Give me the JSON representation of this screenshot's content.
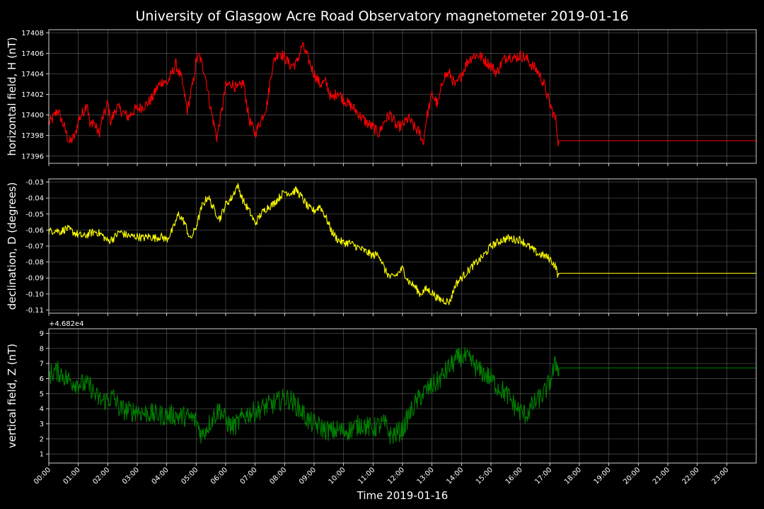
{
  "chart_data": {
    "type": "line",
    "title": "University of Glasgow Acre Road Observatory magnetometer 2019-01-16",
    "xlabel": "Time 2019-01-16",
    "x_ticks": [
      "00:00",
      "01:00",
      "02:00",
      "03:00",
      "04:00",
      "05:00",
      "06:00",
      "07:00",
      "08:00",
      "09:00",
      "10:00",
      "11:00",
      "12:00",
      "13:00",
      "14:00",
      "15:00",
      "16:00",
      "17:00",
      "18:00",
      "19:00",
      "20:00",
      "21:00",
      "22:00",
      "23:00"
    ],
    "xlim": [
      0,
      24
    ],
    "grid": true,
    "panels": [
      {
        "name": "H",
        "ylabel": "horizontal field, H (nT)",
        "color": "#ff0000",
        "ylim": [
          17395.3,
          17408.3
        ],
        "yticks": [
          17396,
          17398,
          17400,
          17402,
          17404,
          17406,
          17408
        ],
        "offset_text": "",
        "noise": 0.55,
        "data_end_hour": 17.3,
        "flat_value": 17397.5,
        "x": [
          0,
          0.1,
          0.3,
          0.5,
          0.7,
          0.9,
          1.0,
          1.2,
          1.3,
          1.4,
          1.5,
          1.6,
          1.7,
          1.8,
          1.9,
          2.0,
          2.1,
          2.3,
          2.5,
          2.7,
          2.9,
          3.1,
          3.3,
          3.5,
          3.7,
          3.9,
          4.0,
          4.2,
          4.3,
          4.5,
          4.7,
          4.9,
          5.0,
          5.1,
          5.3,
          5.5,
          5.7,
          5.9,
          6.0,
          6.2,
          6.4,
          6.6,
          6.8,
          7.0,
          7.2,
          7.4,
          7.6,
          7.8,
          8.0,
          8.2,
          8.4,
          8.6,
          8.8,
          9.0,
          9.2,
          9.4,
          9.6,
          9.8,
          10.0,
          10.2,
          10.4,
          10.6,
          10.8,
          11.0,
          11.2,
          11.4,
          11.6,
          11.8,
          12.0,
          12.2,
          12.4,
          12.6,
          12.7,
          12.8,
          13.0,
          13.2,
          13.4,
          13.6,
          13.8,
          14.0,
          14.2,
          14.4,
          14.6,
          14.8,
          15.0,
          15.2,
          15.4,
          15.6,
          15.8,
          16.0,
          16.2,
          16.4,
          16.6,
          16.8,
          17.0,
          17.2,
          17.3
        ],
        "y": [
          17399.2,
          17399.5,
          17400.5,
          17399.0,
          17397.3,
          17398.0,
          17399.5,
          17400.5,
          17401.3,
          17398.8,
          17399.5,
          17398.8,
          17398.1,
          17399.5,
          17400.2,
          17401.2,
          17399.3,
          17400.8,
          17400.3,
          17399.8,
          17400.5,
          17400.7,
          17401.0,
          17401.6,
          17402.8,
          17403.4,
          17403.0,
          17404.2,
          17405.0,
          17403.5,
          17400.5,
          17403.2,
          17405.3,
          17405.8,
          17404.0,
          17400.5,
          17397.8,
          17401.0,
          17402.8,
          17403.1,
          17402.5,
          17403.2,
          17399.5,
          17398.2,
          17399.5,
          17401.0,
          17405.0,
          17406.2,
          17405.6,
          17404.8,
          17405.0,
          17406.8,
          17405.5,
          17404.0,
          17403.0,
          17403.2,
          17401.5,
          17402.3,
          17401.5,
          17401.0,
          17400.5,
          17399.8,
          17399.2,
          17398.8,
          17398.2,
          17399.5,
          17400.1,
          17398.8,
          17399.0,
          17399.7,
          17398.8,
          17398.2,
          17397.2,
          17399.5,
          17402.0,
          17401.0,
          17403.8,
          17404.0,
          17402.8,
          17403.9,
          17405.2,
          17405.8,
          17405.8,
          17405.3,
          17404.8,
          17404.1,
          17405.3,
          17405.8,
          17405.5,
          17405.8,
          17405.5,
          17404.8,
          17404.2,
          17403.0,
          17401.0,
          17399.5,
          17397.0
        ]
      },
      {
        "name": "D",
        "ylabel": "declination, D (degrees)",
        "color": "#ffff00",
        "ylim": [
          -0.112,
          -0.028
        ],
        "yticks": [
          -0.03,
          -0.04,
          -0.05,
          -0.06,
          -0.07,
          -0.08,
          -0.09,
          -0.1,
          -0.11
        ],
        "offset_text": "",
        "noise": 0.0025,
        "data_end_hour": 17.3,
        "flat_value": -0.087,
        "x": [
          0,
          0.2,
          0.4,
          0.6,
          0.8,
          1.0,
          1.2,
          1.4,
          1.6,
          1.8,
          2.0,
          2.2,
          2.4,
          2.6,
          2.8,
          3.0,
          3.2,
          3.4,
          3.6,
          3.8,
          4.0,
          4.2,
          4.4,
          4.6,
          4.8,
          5.0,
          5.2,
          5.4,
          5.6,
          5.8,
          6.0,
          6.2,
          6.4,
          6.6,
          6.8,
          7.0,
          7.2,
          7.4,
          7.6,
          7.8,
          8.0,
          8.2,
          8.4,
          8.6,
          8.8,
          9.0,
          9.2,
          9.4,
          9.6,
          9.8,
          10.0,
          10.2,
          10.4,
          10.6,
          10.8,
          11.0,
          11.2,
          11.4,
          11.6,
          11.8,
          12.0,
          12.2,
          12.4,
          12.6,
          12.8,
          13.0,
          13.2,
          13.4,
          13.6,
          13.8,
          14.0,
          14.2,
          14.4,
          14.6,
          14.8,
          15.0,
          15.2,
          15.4,
          15.6,
          15.8,
          16.0,
          16.2,
          16.4,
          16.6,
          16.8,
          17.0,
          17.2,
          17.3
        ],
        "y": [
          -0.061,
          -0.06,
          -0.061,
          -0.059,
          -0.061,
          -0.063,
          -0.064,
          -0.062,
          -0.061,
          -0.063,
          -0.067,
          -0.065,
          -0.061,
          -0.063,
          -0.064,
          -0.064,
          -0.065,
          -0.064,
          -0.065,
          -0.064,
          -0.066,
          -0.06,
          -0.05,
          -0.055,
          -0.066,
          -0.058,
          -0.045,
          -0.039,
          -0.047,
          -0.053,
          -0.044,
          -0.04,
          -0.032,
          -0.042,
          -0.048,
          -0.056,
          -0.05,
          -0.046,
          -0.044,
          -0.04,
          -0.036,
          -0.037,
          -0.035,
          -0.04,
          -0.046,
          -0.048,
          -0.045,
          -0.052,
          -0.061,
          -0.066,
          -0.068,
          -0.068,
          -0.07,
          -0.072,
          -0.074,
          -0.076,
          -0.075,
          -0.085,
          -0.09,
          -0.088,
          -0.084,
          -0.092,
          -0.095,
          -0.1,
          -0.097,
          -0.099,
          -0.103,
          -0.104,
          -0.105,
          -0.094,
          -0.09,
          -0.086,
          -0.082,
          -0.079,
          -0.075,
          -0.07,
          -0.068,
          -0.066,
          -0.065,
          -0.066,
          -0.066,
          -0.069,
          -0.072,
          -0.075,
          -0.076,
          -0.078,
          -0.083,
          -0.09
        ]
      },
      {
        "name": "Z",
        "ylabel": "vertical field, Z (nT)",
        "color": "#008000",
        "ylim": [
          0.4,
          9.3
        ],
        "yticks": [
          1,
          2,
          3,
          4,
          5,
          6,
          7,
          8,
          9
        ],
        "offset_text": "+4.682e4",
        "noise": 0.7,
        "data_end_hour": 17.3,
        "flat_value": 6.7,
        "x": [
          0,
          0.2,
          0.4,
          0.6,
          0.8,
          1.0,
          1.2,
          1.4,
          1.6,
          1.8,
          2.0,
          2.2,
          2.4,
          2.6,
          2.8,
          3.0,
          3.2,
          3.4,
          3.6,
          3.8,
          4.0,
          4.2,
          4.4,
          4.6,
          4.8,
          5.0,
          5.2,
          5.4,
          5.6,
          5.8,
          6.0,
          6.2,
          6.4,
          6.6,
          6.8,
          7.0,
          7.2,
          7.4,
          7.6,
          7.8,
          8.0,
          8.2,
          8.4,
          8.6,
          8.8,
          9.0,
          9.2,
          9.4,
          9.6,
          9.8,
          10.0,
          10.2,
          10.4,
          10.6,
          10.8,
          11.0,
          11.2,
          11.4,
          11.6,
          11.8,
          12.0,
          12.2,
          12.4,
          12.6,
          12.8,
          13.0,
          13.2,
          13.4,
          13.6,
          13.8,
          14.0,
          14.2,
          14.4,
          14.6,
          14.8,
          15.0,
          15.2,
          15.4,
          15.6,
          15.8,
          16.0,
          16.2,
          16.4,
          16.6,
          16.8,
          17.0,
          17.2,
          17.3
        ],
        "y": [
          6.2,
          6.5,
          6.4,
          6.0,
          5.8,
          5.7,
          5.6,
          5.5,
          4.8,
          4.5,
          4.6,
          4.8,
          4.0,
          3.9,
          3.8,
          3.9,
          3.7,
          3.7,
          3.6,
          3.6,
          3.5,
          3.6,
          3.5,
          3.5,
          3.4,
          3.2,
          2.2,
          2.9,
          3.5,
          4.0,
          3.2,
          2.8,
          3.0,
          3.5,
          3.7,
          3.8,
          4.0,
          4.2,
          4.3,
          4.5,
          4.7,
          4.6,
          4.2,
          3.8,
          3.2,
          3.0,
          2.8,
          2.6,
          2.5,
          2.6,
          2.5,
          2.6,
          2.8,
          3.0,
          2.8,
          2.7,
          2.9,
          3.0,
          2.2,
          2.4,
          2.6,
          3.5,
          4.2,
          4.8,
          5.2,
          5.5,
          5.8,
          6.3,
          6.8,
          7.2,
          7.5,
          7.3,
          7.0,
          6.5,
          6.3,
          6.0,
          5.5,
          5.2,
          4.8,
          4.2,
          3.8,
          3.6,
          4.2,
          4.6,
          5.0,
          5.8,
          7.0,
          6.7
        ]
      }
    ]
  }
}
